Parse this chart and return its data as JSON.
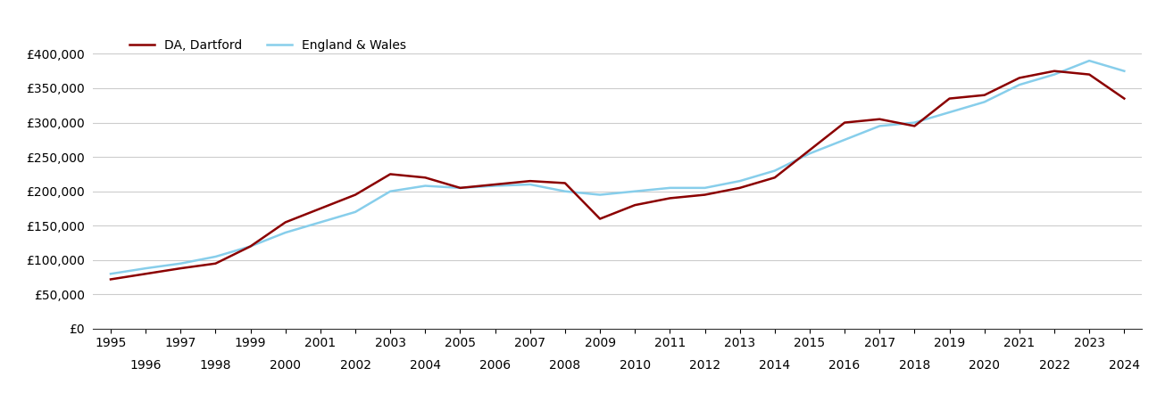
{
  "dartford": {
    "years": [
      1995,
      1996,
      1997,
      1998,
      1999,
      2000,
      2001,
      2002,
      2003,
      2004,
      2005,
      2006,
      2007,
      2008,
      2009,
      2010,
      2011,
      2012,
      2013,
      2014,
      2015,
      2016,
      2017,
      2018,
      2019,
      2020,
      2021,
      2022,
      2023,
      2024
    ],
    "values": [
      72000,
      80000,
      88000,
      95000,
      120000,
      155000,
      175000,
      195000,
      225000,
      220000,
      205000,
      210000,
      215000,
      212000,
      160000,
      180000,
      190000,
      195000,
      205000,
      220000,
      260000,
      300000,
      305000,
      295000,
      335000,
      340000,
      365000,
      375000,
      370000,
      335000
    ]
  },
  "england_wales": {
    "years": [
      1995,
      1996,
      1997,
      1998,
      1999,
      2000,
      2001,
      2002,
      2003,
      2004,
      2005,
      2006,
      2007,
      2008,
      2009,
      2010,
      2011,
      2012,
      2013,
      2014,
      2015,
      2016,
      2017,
      2018,
      2019,
      2020,
      2021,
      2022,
      2023,
      2024
    ],
    "values": [
      80000,
      88000,
      95000,
      105000,
      120000,
      140000,
      155000,
      170000,
      200000,
      208000,
      205000,
      208000,
      210000,
      200000,
      195000,
      200000,
      205000,
      205000,
      215000,
      230000,
      255000,
      275000,
      295000,
      300000,
      315000,
      330000,
      355000,
      370000,
      390000,
      375000
    ]
  },
  "dartford_color": "#8B0000",
  "england_wales_color": "#87CEEB",
  "dartford_label": "DA, Dartford",
  "england_wales_label": "England & Wales",
  "ylim": [
    0,
    420000
  ],
  "yticks": [
    0,
    50000,
    100000,
    150000,
    200000,
    250000,
    300000,
    350000,
    400000
  ],
  "background_color": "#ffffff",
  "grid_color": "#cccccc",
  "line_width": 1.8,
  "legend_fontsize": 10,
  "tick_fontsize": 10
}
